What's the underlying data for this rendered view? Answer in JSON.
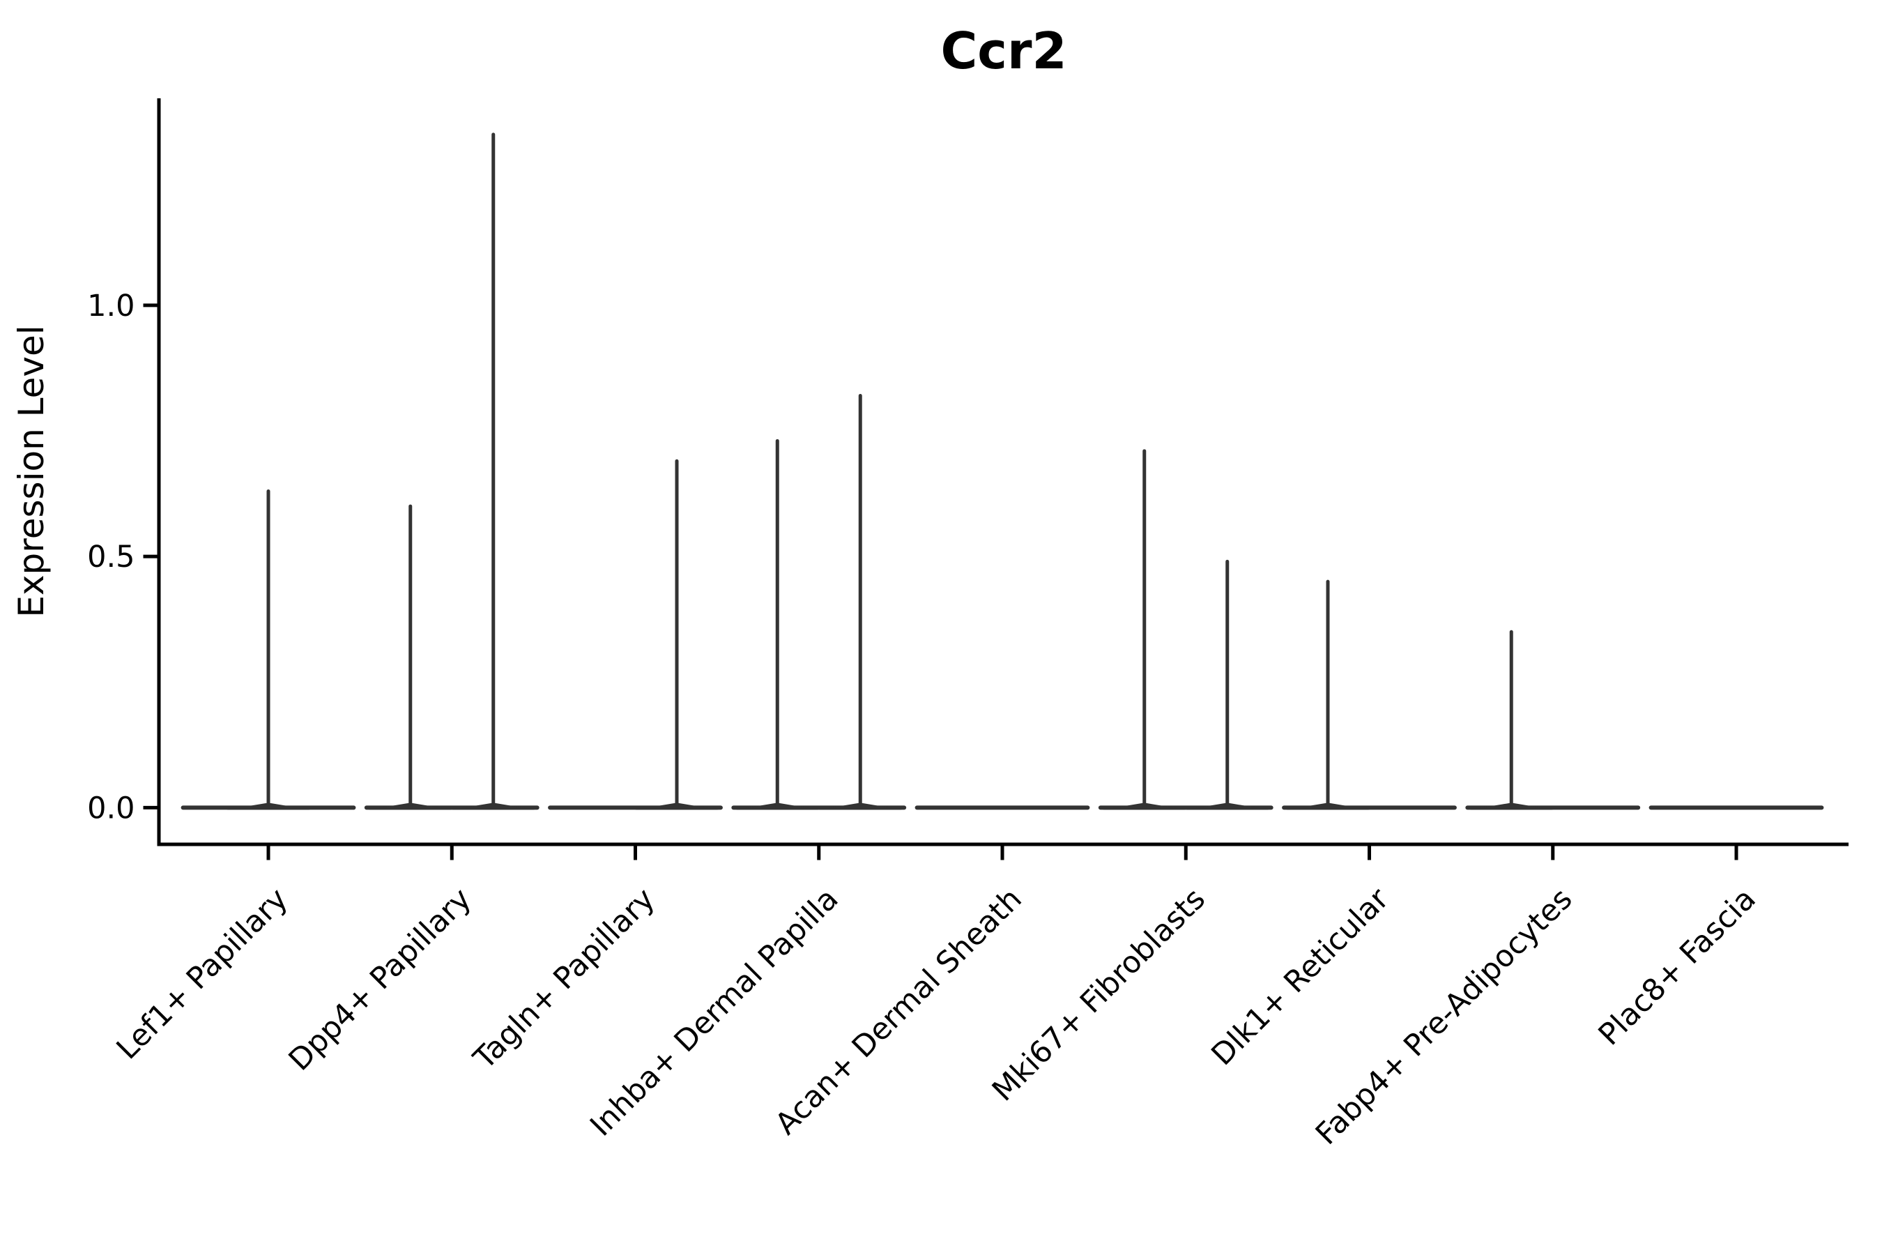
{
  "chart_data": {
    "type": "violin",
    "title": "Ccr2",
    "xlabel": "",
    "ylabel": "Expression Level",
    "ylim": [
      -0.073,
      1.412
    ],
    "yticks": [
      0.0,
      0.5,
      1.0
    ],
    "ytick_labels": [
      "0.0",
      "0.5",
      "1.0"
    ],
    "categories": [
      "Lef1+ Papillary",
      "Dpp4+ Papillary",
      "Tagln+ Papillary",
      "Inhba+ Dermal Papilla",
      "Acan+ Dermal Sheath",
      "Mki67+ Fibroblasts",
      "Dlk1+ Reticular",
      "Fabp4+ Pre-Adipocytes",
      "Plac8+ Fascia"
    ],
    "violins": [
      {
        "category": "Lef1+ Papillary",
        "spikes": [
          {
            "offset": 0.0,
            "max": 0.63
          }
        ]
      },
      {
        "category": "Dpp4+ Papillary",
        "spikes": [
          {
            "offset": -0.226,
            "max": 0.6
          },
          {
            "offset": 0.226,
            "max": 1.34
          }
        ]
      },
      {
        "category": "Tagln+ Papillary",
        "spikes": [
          {
            "offset": 0.226,
            "max": 0.69
          }
        ]
      },
      {
        "category": "Inhba+ Dermal Papilla",
        "spikes": [
          {
            "offset": -0.226,
            "max": 0.73
          },
          {
            "offset": 0.226,
            "max": 0.82
          }
        ]
      },
      {
        "category": "Acan+ Dermal Sheath",
        "spikes": []
      },
      {
        "category": "Mki67+ Fibroblasts",
        "spikes": [
          {
            "offset": -0.226,
            "max": 0.71
          },
          {
            "offset": 0.226,
            "max": 0.49
          }
        ]
      },
      {
        "category": "Dlk1+ Reticular",
        "spikes": [
          {
            "offset": -0.226,
            "max": 0.45
          }
        ]
      },
      {
        "category": "Fabp4+ Pre-Adipocytes",
        "spikes": [
          {
            "offset": -0.226,
            "max": 0.35
          }
        ]
      },
      {
        "category": "Plac8+ Fascia",
        "spikes": []
      }
    ],
    "violin_width": 0.93,
    "baseline_value": 0.0,
    "legend": "none",
    "grid": "off",
    "colors": {
      "violin": "#333333",
      "axis": "#000000",
      "text": "#000000",
      "background": "#ffffff"
    }
  }
}
